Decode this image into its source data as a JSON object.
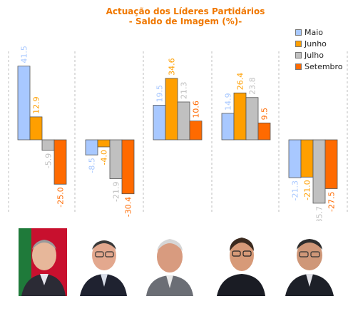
{
  "title": "Actuação dos Líderes Partidários",
  "subtitle": "- Saldo de Imagem (%)-",
  "colors": {
    "Maio": "#a8c8ff",
    "Junho": "#ff9f00",
    "Julho": "#c0c0c0",
    "Setembro": "#ff6a00",
    "title": "#f07800"
  },
  "chart_data": {
    "type": "bar",
    "title": "Actuação dos Líderes Partidários",
    "subtitle": "- Saldo de Imagem (%)-",
    "categories": [
      "",
      "",
      "",
      "",
      ""
    ],
    "series": [
      {
        "name": "Maio",
        "values": [
          41.5,
          -8.5,
          19.5,
          14.9,
          -21.3
        ]
      },
      {
        "name": "Junho",
        "values": [
          12.9,
          -4.0,
          34.6,
          26.4,
          -21.0
        ]
      },
      {
        "name": "Julho",
        "values": [
          -5.9,
          -21.9,
          21.3,
          23.8,
          -35.7
        ]
      },
      {
        "name": "Setembro",
        "values": [
          -25.0,
          -30.4,
          10.6,
          9.5,
          -27.5
        ]
      }
    ],
    "value_labels": [
      [
        "41.5",
        "-8.5",
        "19.5",
        "14.9",
        "-21.3"
      ],
      [
        "12.9",
        "-4.0",
        "34.6",
        "26.4",
        "-21.0"
      ],
      [
        "-5.9",
        "-21.9",
        "21.3",
        "23.8",
        "-35.7"
      ],
      [
        "-25.0",
        "-30.4",
        "10.6",
        "9.5",
        "-27.5"
      ]
    ],
    "legend_position": "top-right",
    "grid": false,
    "ylabel": "",
    "xlabel": ""
  },
  "photos": [
    "portrait-1",
    "portrait-2",
    "portrait-3",
    "portrait-4",
    "portrait-5"
  ]
}
